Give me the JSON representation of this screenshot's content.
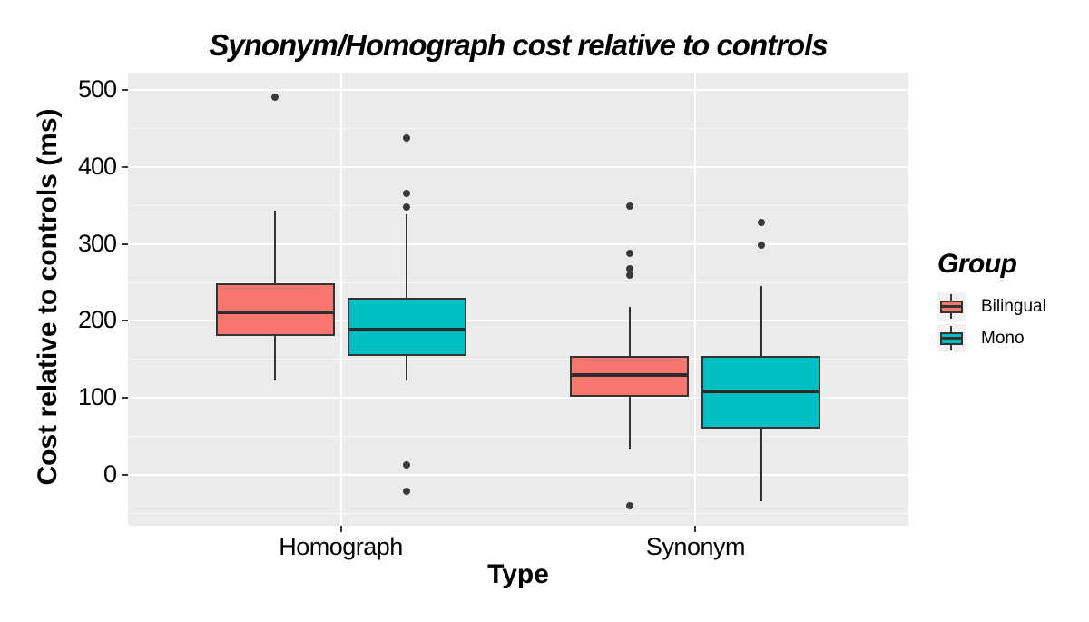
{
  "title": "Synonym/Homograph cost relative to controls",
  "axes": {
    "y_title": "Cost relative to controls (ms)",
    "x_title": "Type",
    "y_ticks": [
      500,
      400,
      300,
      200,
      100,
      0
    ],
    "x_ticks": [
      "Homograph",
      "Synonym"
    ]
  },
  "legend": {
    "title": "Group",
    "items": [
      {
        "label": "Bilingual",
        "color": "#F8766D"
      },
      {
        "label": "Mono",
        "color": "#00BFC4"
      }
    ]
  },
  "colors": {
    "panel_background": "#EBEBEB",
    "gridline": "#FFFFFF",
    "box_border": "#333333",
    "median_line": "#2B2B2B",
    "outlier_dot": "#3A3A3A",
    "text": "#000000",
    "bilingual_fill": "#F8766D",
    "mono_fill": "#00BFC4",
    "legend_key_background": "#F2F2F2"
  },
  "chart_data": {
    "type": "boxplot",
    "title": "Synonym/Homograph cost relative to controls",
    "xlabel": "Type",
    "ylabel": "Cost relative to controls (ms)",
    "categories": [
      "Homograph",
      "Synonym"
    ],
    "ylim": [
      -66,
      522
    ],
    "y_major_ticks": [
      0,
      100,
      200,
      300,
      400,
      500
    ],
    "y_minor_gridlines": [
      -50,
      50,
      150,
      250,
      350,
      450
    ],
    "grid": true,
    "legend_position": "right",
    "legend_title": "Group",
    "series": [
      {
        "name": "Bilingual",
        "color": "#F8766D",
        "boxes": [
          {
            "category": "Homograph",
            "whisker_low": 123,
            "q1": 180,
            "median": 211,
            "q3": 249,
            "whisker_high": 343,
            "outliers": [
              490
            ]
          },
          {
            "category": "Synonym",
            "whisker_low": 33,
            "q1": 101,
            "median": 130,
            "q3": 155,
            "whisker_high": 218,
            "outliers": [
              349,
              288,
              268,
              259,
              -40
            ]
          }
        ]
      },
      {
        "name": "Mono",
        "color": "#00BFC4",
        "boxes": [
          {
            "category": "Homograph",
            "whisker_low": 123,
            "q1": 154,
            "median": 189,
            "q3": 230,
            "whisker_high": 339,
            "outliers": [
              438,
              365,
              348,
              13,
              -21
            ]
          },
          {
            "category": "Synonym",
            "whisker_low": -34,
            "q1": 60,
            "median": 108,
            "q3": 154,
            "whisker_high": 245,
            "outliers": [
              328,
              298
            ]
          }
        ]
      }
    ]
  }
}
